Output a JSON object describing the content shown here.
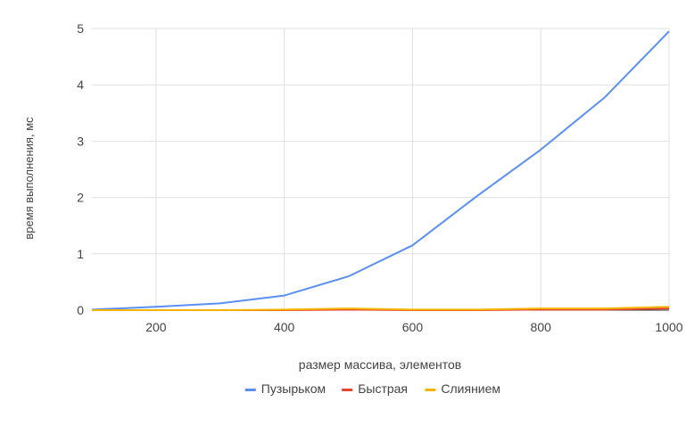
{
  "chart_data": {
    "type": "line",
    "title": "",
    "xlabel": "размер массива, элементов",
    "ylabel": "время выполнения, мс",
    "x": [
      100,
      200,
      300,
      400,
      500,
      600,
      700,
      800,
      900,
      1000
    ],
    "xlim": [
      100,
      1000
    ],
    "ylim": [
      0,
      5
    ],
    "x_ticks": [
      200,
      400,
      600,
      800,
      1000
    ],
    "y_ticks": [
      0,
      1,
      2,
      3,
      4,
      5
    ],
    "grid": true,
    "legend_position": "bottom",
    "series": [
      {
        "name": "Пузырьком",
        "color": "#5b8ff5",
        "values": [
          0.01,
          0.06,
          0.12,
          0.26,
          0.6,
          1.15,
          2.02,
          2.85,
          3.78,
          4.95
        ]
      },
      {
        "name": "Быстрая",
        "color": "#e8432f",
        "values": [
          0.0,
          0.0,
          0.0,
          0.0,
          0.01,
          0.0,
          0.0,
          0.01,
          0.01,
          0.03
        ]
      },
      {
        "name": "Слиянием",
        "color": "#f4b400",
        "values": [
          0.0,
          0.0,
          0.0,
          0.01,
          0.03,
          0.01,
          0.01,
          0.03,
          0.03,
          0.06
        ]
      }
    ]
  }
}
